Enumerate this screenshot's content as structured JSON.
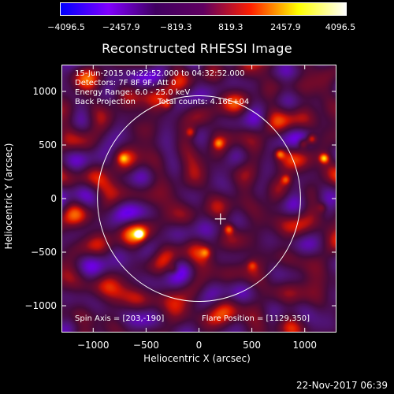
{
  "colorbar": {
    "ticks": [
      "−4096.5",
      "−2457.9",
      "−819.3",
      "819.3",
      "2457.9",
      "4096.5"
    ],
    "colors": [
      "#0000ff",
      "#8000ff",
      "#400060",
      "#600060",
      "#ff2000",
      "#ffff00",
      "#ffffff"
    ]
  },
  "title": "Reconstructed RHESSI Image",
  "annotations": {
    "time_range": "15-Jun-2015 04:22:52.000 to 04:32:52.000",
    "detectors": "Detectors: 7F 8F 9F, Att 0",
    "energy_range": "Energy Range: 6.0 - 25.0 keV",
    "method": "Back Projection",
    "total_counts": "Total counts: 4.16E+04",
    "spin_axis": "Spin Axis = [203,-190]",
    "flare_position": "Flare Position = [1129,350]"
  },
  "footer": {
    "date": "22-Nov-2017 06:39"
  },
  "chart_data": {
    "type": "heatmap",
    "title": "Reconstructed RHESSI Image",
    "xlabel": "Heliocentric X (arcsec)",
    "ylabel": "Heliocentric Y (arcsec)",
    "xlim": [
      -1300,
      1300
    ],
    "ylim": [
      -1250,
      1250
    ],
    "x_ticks": [
      -1000,
      -500,
      0,
      500,
      1000
    ],
    "y_ticks": [
      -1000,
      -500,
      0,
      500,
      1000
    ],
    "x_tick_labels": [
      "−1000",
      "−500",
      "0",
      "500",
      "1000"
    ],
    "y_tick_labels": [
      "−1000",
      "−500",
      "0",
      "500",
      "1000"
    ],
    "colorbar_range": [
      -4096.5,
      4096.5
    ],
    "solar_limb": {
      "center": [
        0,
        0
      ],
      "radius": 960
    },
    "spin_axis_marker": [
      203,
      -190
    ],
    "bright_features": [
      {
        "x": 1180,
        "y": 380,
        "value": 4000
      },
      {
        "x": 1060,
        "y": 560,
        "value": 3200
      },
      {
        "x": 980,
        "y": 520,
        "value": 2900
      },
      {
        "x": 760,
        "y": 420,
        "value": 3000
      },
      {
        "x": 820,
        "y": 180,
        "value": 2400
      },
      {
        "x": 280,
        "y": -280,
        "value": 2800
      },
      {
        "x": -560,
        "y": -330,
        "value": 2500
      },
      {
        "x": -80,
        "y": 620,
        "value": 2200
      },
      {
        "x": 180,
        "y": 520,
        "value": 2000
      },
      {
        "x": -720,
        "y": 380,
        "value": 1800
      },
      {
        "x": -300,
        "y": 880,
        "value": 1800
      },
      {
        "x": 60,
        "y": -500,
        "value": 1900
      },
      {
        "x": 500,
        "y": -620,
        "value": 1700
      },
      {
        "x": -240,
        "y": -660,
        "value": 1700
      },
      {
        "x": 1160,
        "y": -80,
        "value": 1600
      }
    ]
  }
}
